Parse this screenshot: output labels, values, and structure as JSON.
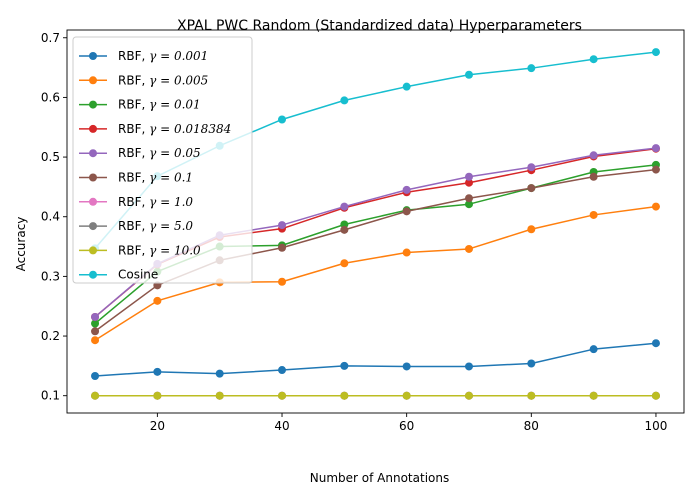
{
  "chart_data": {
    "type": "line",
    "title": "XPAL PWC Random (Standardized data) Hyperparameters",
    "xlabel": "Number of Annotations",
    "ylabel": "Accuracy",
    "xlim": [
      5.5,
      104.5
    ],
    "ylim": [
      0.071,
      0.713
    ],
    "xticks": [
      20,
      40,
      60,
      80,
      100
    ],
    "yticks": [
      0.1,
      0.2,
      0.3,
      0.4,
      0.5,
      0.6,
      0.7
    ],
    "ytick_labels": [
      "0.1",
      "0.2",
      "0.3",
      "0.4",
      "0.5",
      "0.6",
      "0.7"
    ],
    "grid": false,
    "legend_position": "top-left",
    "x": [
      10,
      20,
      30,
      40,
      50,
      60,
      70,
      80,
      90,
      100
    ],
    "series": [
      {
        "name": "RBF, γ = 0.001",
        "name_prefix": "RBF, ",
        "name_math": "γ = 0.001",
        "color": "#1f77b4",
        "values": [
          0.133,
          0.14,
          0.137,
          0.143,
          0.15,
          0.149,
          0.149,
          0.154,
          0.178,
          0.188
        ]
      },
      {
        "name": "RBF, γ = 0.005",
        "name_prefix": "RBF, ",
        "name_math": "γ = 0.005",
        "color": "#ff7f0e",
        "values": [
          0.193,
          0.259,
          0.29,
          0.291,
          0.322,
          0.34,
          0.346,
          0.379,
          0.403,
          0.417
        ]
      },
      {
        "name": "RBF, γ = 0.01",
        "name_prefix": "RBF, ",
        "name_math": "γ = 0.01",
        "color": "#2ca02c",
        "values": [
          0.221,
          0.308,
          0.35,
          0.352,
          0.387,
          0.411,
          0.421,
          0.448,
          0.475,
          0.487
        ]
      },
      {
        "name": "RBF, γ = 0.018384",
        "name_prefix": "RBF, ",
        "name_math": "γ = 0.018384",
        "color": "#d62728",
        "values": [
          0.232,
          0.32,
          0.366,
          0.38,
          0.415,
          0.441,
          0.457,
          0.478,
          0.501,
          0.514
        ]
      },
      {
        "name": "RBF, γ = 0.05",
        "name_prefix": "RBF, ",
        "name_math": "γ = 0.05",
        "color": "#9467bd",
        "values": [
          0.232,
          0.321,
          0.369,
          0.386,
          0.417,
          0.445,
          0.467,
          0.483,
          0.503,
          0.515
        ]
      },
      {
        "name": "RBF, γ = 0.1",
        "name_prefix": "RBF, ",
        "name_math": "γ = 0.1",
        "color": "#8c564b",
        "values": [
          0.208,
          0.285,
          0.327,
          0.348,
          0.378,
          0.409,
          0.431,
          0.448,
          0.467,
          0.479
        ]
      },
      {
        "name": "RBF, γ = 1.0",
        "name_prefix": "RBF, ",
        "name_math": "γ = 1.0",
        "color": "#e377c2",
        "values": [
          0.1,
          0.1,
          0.1,
          0.1,
          0.1,
          0.1,
          0.1,
          0.1,
          0.1,
          0.1
        ]
      },
      {
        "name": "RBF, γ = 5.0",
        "name_prefix": "RBF, ",
        "name_math": "γ = 5.0",
        "color": "#7f7f7f",
        "values": [
          0.1,
          0.1,
          0.1,
          0.1,
          0.1,
          0.1,
          0.1,
          0.1,
          0.1,
          0.1
        ]
      },
      {
        "name": "RBF, γ = 10.0",
        "name_prefix": "RBF, ",
        "name_math": "γ = 10.0",
        "color": "#bcbd22",
        "values": [
          0.1,
          0.1,
          0.1,
          0.1,
          0.1,
          0.1,
          0.1,
          0.1,
          0.1,
          0.1
        ]
      },
      {
        "name": "Cosine",
        "name_prefix": "Cosine",
        "name_math": "",
        "color": "#17becf",
        "values": [
          0.347,
          0.468,
          0.519,
          0.563,
          0.595,
          0.618,
          0.638,
          0.649,
          0.664,
          0.676
        ]
      }
    ]
  }
}
